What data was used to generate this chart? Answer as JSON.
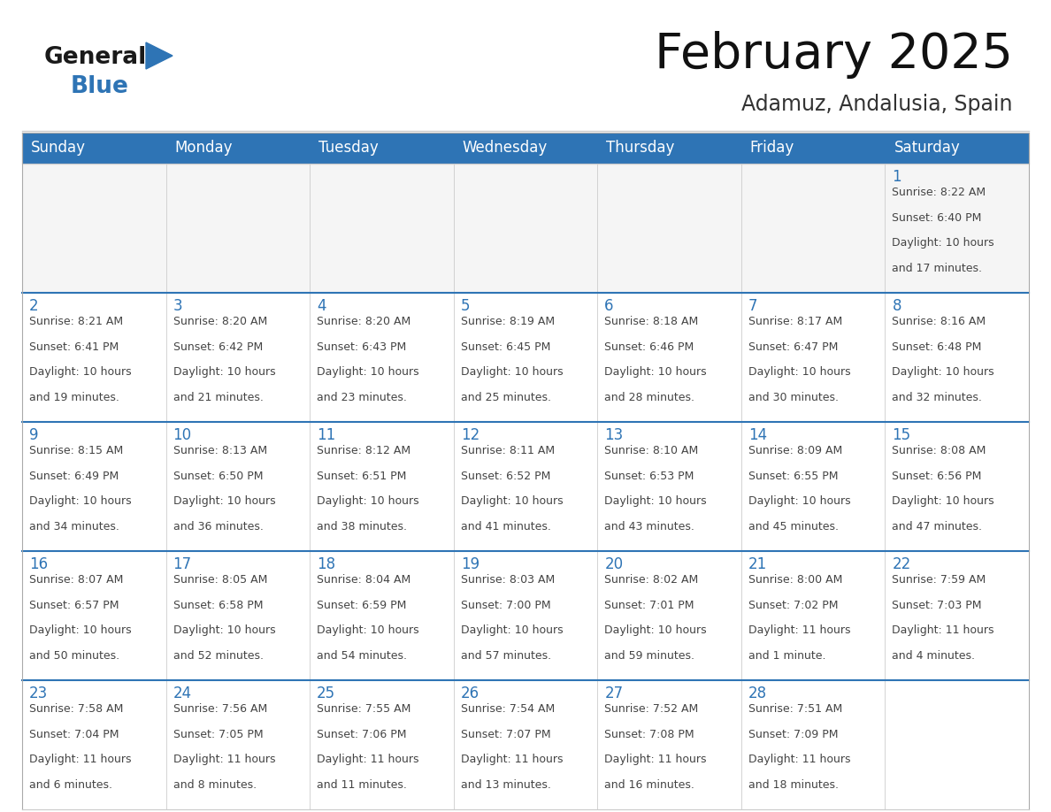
{
  "title": "February 2025",
  "subtitle": "Adamuz, Andalusia, Spain",
  "header_bg": "#2E74B5",
  "header_text_color": "#FFFFFF",
  "cell_bg": "#FFFFFF",
  "row_separator_color": "#2E74B5",
  "cell_border_color": "#CCCCCC",
  "day_num_color": "#2E74B5",
  "cell_text_color": "#444444",
  "title_color": "#111111",
  "subtitle_color": "#333333",
  "days_of_week": [
    "Sunday",
    "Monday",
    "Tuesday",
    "Wednesday",
    "Thursday",
    "Friday",
    "Saturday"
  ],
  "calendar_data": [
    [
      null,
      null,
      null,
      null,
      null,
      null,
      {
        "day": "1",
        "sunrise": "8:22 AM",
        "sunset": "6:40 PM",
        "daylight1": "10 hours",
        "daylight2": "and 17 minutes."
      }
    ],
    [
      {
        "day": "2",
        "sunrise": "8:21 AM",
        "sunset": "6:41 PM",
        "daylight1": "10 hours",
        "daylight2": "and 19 minutes."
      },
      {
        "day": "3",
        "sunrise": "8:20 AM",
        "sunset": "6:42 PM",
        "daylight1": "10 hours",
        "daylight2": "and 21 minutes."
      },
      {
        "day": "4",
        "sunrise": "8:20 AM",
        "sunset": "6:43 PM",
        "daylight1": "10 hours",
        "daylight2": "and 23 minutes."
      },
      {
        "day": "5",
        "sunrise": "8:19 AM",
        "sunset": "6:45 PM",
        "daylight1": "10 hours",
        "daylight2": "and 25 minutes."
      },
      {
        "day": "6",
        "sunrise": "8:18 AM",
        "sunset": "6:46 PM",
        "daylight1": "10 hours",
        "daylight2": "and 28 minutes."
      },
      {
        "day": "7",
        "sunrise": "8:17 AM",
        "sunset": "6:47 PM",
        "daylight1": "10 hours",
        "daylight2": "and 30 minutes."
      },
      {
        "day": "8",
        "sunrise": "8:16 AM",
        "sunset": "6:48 PM",
        "daylight1": "10 hours",
        "daylight2": "and 32 minutes."
      }
    ],
    [
      {
        "day": "9",
        "sunrise": "8:15 AM",
        "sunset": "6:49 PM",
        "daylight1": "10 hours",
        "daylight2": "and 34 minutes."
      },
      {
        "day": "10",
        "sunrise": "8:13 AM",
        "sunset": "6:50 PM",
        "daylight1": "10 hours",
        "daylight2": "and 36 minutes."
      },
      {
        "day": "11",
        "sunrise": "8:12 AM",
        "sunset": "6:51 PM",
        "daylight1": "10 hours",
        "daylight2": "and 38 minutes."
      },
      {
        "day": "12",
        "sunrise": "8:11 AM",
        "sunset": "6:52 PM",
        "daylight1": "10 hours",
        "daylight2": "and 41 minutes."
      },
      {
        "day": "13",
        "sunrise": "8:10 AM",
        "sunset": "6:53 PM",
        "daylight1": "10 hours",
        "daylight2": "and 43 minutes."
      },
      {
        "day": "14",
        "sunrise": "8:09 AM",
        "sunset": "6:55 PM",
        "daylight1": "10 hours",
        "daylight2": "and 45 minutes."
      },
      {
        "day": "15",
        "sunrise": "8:08 AM",
        "sunset": "6:56 PM",
        "daylight1": "10 hours",
        "daylight2": "and 47 minutes."
      }
    ],
    [
      {
        "day": "16",
        "sunrise": "8:07 AM",
        "sunset": "6:57 PM",
        "daylight1": "10 hours",
        "daylight2": "and 50 minutes."
      },
      {
        "day": "17",
        "sunrise": "8:05 AM",
        "sunset": "6:58 PM",
        "daylight1": "10 hours",
        "daylight2": "and 52 minutes."
      },
      {
        "day": "18",
        "sunrise": "8:04 AM",
        "sunset": "6:59 PM",
        "daylight1": "10 hours",
        "daylight2": "and 54 minutes."
      },
      {
        "day": "19",
        "sunrise": "8:03 AM",
        "sunset": "7:00 PM",
        "daylight1": "10 hours",
        "daylight2": "and 57 minutes."
      },
      {
        "day": "20",
        "sunrise": "8:02 AM",
        "sunset": "7:01 PM",
        "daylight1": "10 hours",
        "daylight2": "and 59 minutes."
      },
      {
        "day": "21",
        "sunrise": "8:00 AM",
        "sunset": "7:02 PM",
        "daylight1": "11 hours",
        "daylight2": "and 1 minute."
      },
      {
        "day": "22",
        "sunrise": "7:59 AM",
        "sunset": "7:03 PM",
        "daylight1": "11 hours",
        "daylight2": "and 4 minutes."
      }
    ],
    [
      {
        "day": "23",
        "sunrise": "7:58 AM",
        "sunset": "7:04 PM",
        "daylight1": "11 hours",
        "daylight2": "and 6 minutes."
      },
      {
        "day": "24",
        "sunrise": "7:56 AM",
        "sunset": "7:05 PM",
        "daylight1": "11 hours",
        "daylight2": "and 8 minutes."
      },
      {
        "day": "25",
        "sunrise": "7:55 AM",
        "sunset": "7:06 PM",
        "daylight1": "11 hours",
        "daylight2": "and 11 minutes."
      },
      {
        "day": "26",
        "sunrise": "7:54 AM",
        "sunset": "7:07 PM",
        "daylight1": "11 hours",
        "daylight2": "and 13 minutes."
      },
      {
        "day": "27",
        "sunrise": "7:52 AM",
        "sunset": "7:08 PM",
        "daylight1": "11 hours",
        "daylight2": "and 16 minutes."
      },
      {
        "day": "28",
        "sunrise": "7:51 AM",
        "sunset": "7:09 PM",
        "daylight1": "11 hours",
        "daylight2": "and 18 minutes."
      },
      null
    ]
  ]
}
